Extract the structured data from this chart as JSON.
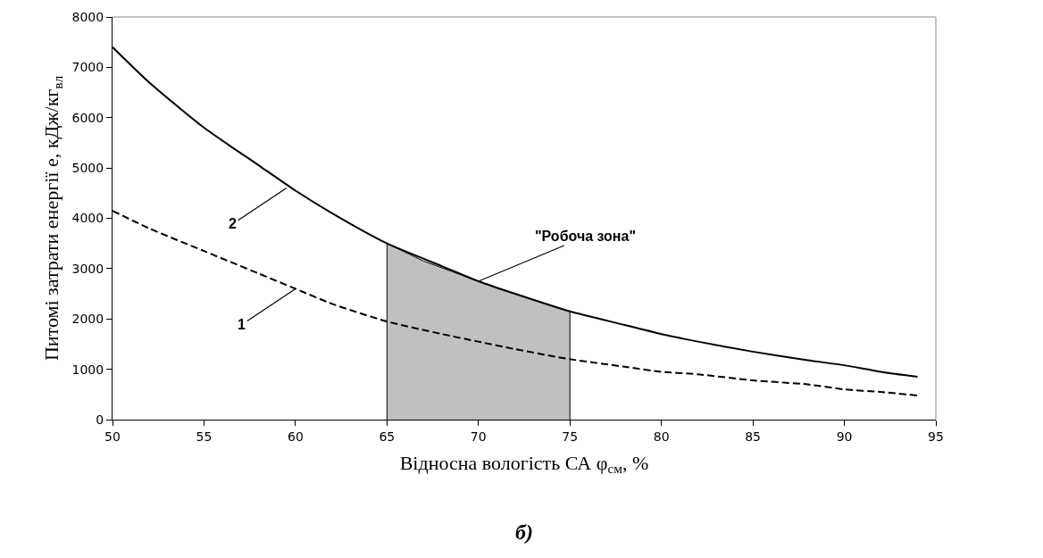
{
  "chart_data": {
    "type": "line",
    "xlabel": "Відносна вологість СА φ$_{см}$, %",
    "ylabel": "Питомі затрати енергії e, кДж/кг$_{вл}$",
    "xlim": [
      50,
      95
    ],
    "xticks": [
      50,
      55,
      60,
      65,
      70,
      75,
      80,
      85,
      90,
      95
    ],
    "ylim": [
      0,
      8000
    ],
    "yticks": [
      0,
      1000,
      2000,
      3000,
      4000,
      5000,
      6000,
      7000,
      8000
    ],
    "grid": false,
    "marker": "none",
    "series": [
      {
        "type": "area",
        "color": "#c0c0c0",
        "x": [
          65,
          67,
          70,
          72,
          75
        ],
        "values": [
          3500,
          3150,
          2750,
          2500,
          2150
        ]
      },
      {
        "color": "#000000",
        "line_style": "dashed",
        "x": [
          50,
          52,
          55,
          58,
          60,
          62,
          65,
          68,
          70,
          72,
          75,
          78,
          80,
          82,
          85,
          88,
          90,
          92,
          94
        ],
        "values": [
          4150,
          3800,
          3350,
          2900,
          2600,
          2300,
          1950,
          1700,
          1550,
          1400,
          1200,
          1050,
          950,
          900,
          780,
          700,
          600,
          550,
          480
        ]
      },
      {
        "color": "#000000",
        "line_style": "solid",
        "x": [
          50,
          52,
          55,
          58,
          60,
          62,
          65,
          68,
          70,
          72,
          75,
          78,
          80,
          82,
          85,
          88,
          90,
          92,
          94
        ],
        "values": [
          7400,
          6700,
          5800,
          5050,
          4550,
          4100,
          3500,
          3050,
          2750,
          2500,
          2150,
          1880,
          1700,
          1550,
          1350,
          1180,
          1080,
          950,
          850
        ]
      }
    ],
    "annotations": [
      {
        "text": "1",
        "x": 60,
        "y": 2600
      },
      {
        "text": "2",
        "x": 59.5,
        "y": 4600
      },
      {
        "text": "\"Робоча зона\"",
        "x": 70,
        "y": 2750
      },
      "б)"
    ]
  }
}
